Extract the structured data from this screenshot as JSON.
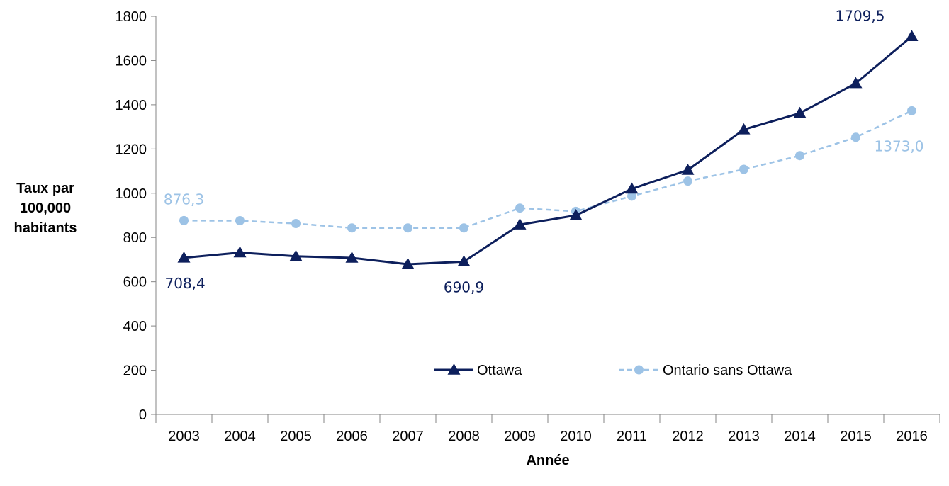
{
  "chart_data": {
    "type": "line",
    "categories": [
      "2003",
      "2004",
      "2005",
      "2006",
      "2007",
      "2008",
      "2009",
      "2010",
      "2011",
      "2012",
      "2013",
      "2014",
      "2015",
      "2016"
    ],
    "series": [
      {
        "name": "Ottawa",
        "values": [
          708.4,
          732,
          715,
          708,
          679,
          690.9,
          858,
          900,
          1020,
          1105,
          1288,
          1362,
          1497,
          1709.5
        ],
        "color": "#0d1f5c",
        "marker": "triangle",
        "line_style": "solid"
      },
      {
        "name": "Ontario sans Ottawa",
        "values": [
          876.3,
          876,
          863,
          843,
          843,
          843,
          933,
          918,
          987,
          1055,
          1108,
          1170,
          1253,
          1373.0
        ],
        "color": "#9dc3e6",
        "marker": "circle",
        "line_style": "dashed"
      }
    ],
    "data_labels": [
      {
        "series": 0,
        "index": 0,
        "text": "708,4"
      },
      {
        "series": 0,
        "index": 5,
        "text": "690,9"
      },
      {
        "series": 0,
        "index": 13,
        "text": "1709,5"
      },
      {
        "series": 1,
        "index": 0,
        "text": "876,3"
      },
      {
        "series": 1,
        "index": 13,
        "text": "1373,0"
      }
    ],
    "y_ticks": [
      "0",
      "200",
      "400",
      "600",
      "800",
      "1000",
      "1200",
      "1400",
      "1600",
      "1800"
    ],
    "xlabel": "Année",
    "ylabel_lines": [
      "Taux par",
      "100,000",
      "habitants"
    ],
    "ylim": [
      0,
      1800
    ],
    "grid": false,
    "legend_position": "bottom-center"
  }
}
